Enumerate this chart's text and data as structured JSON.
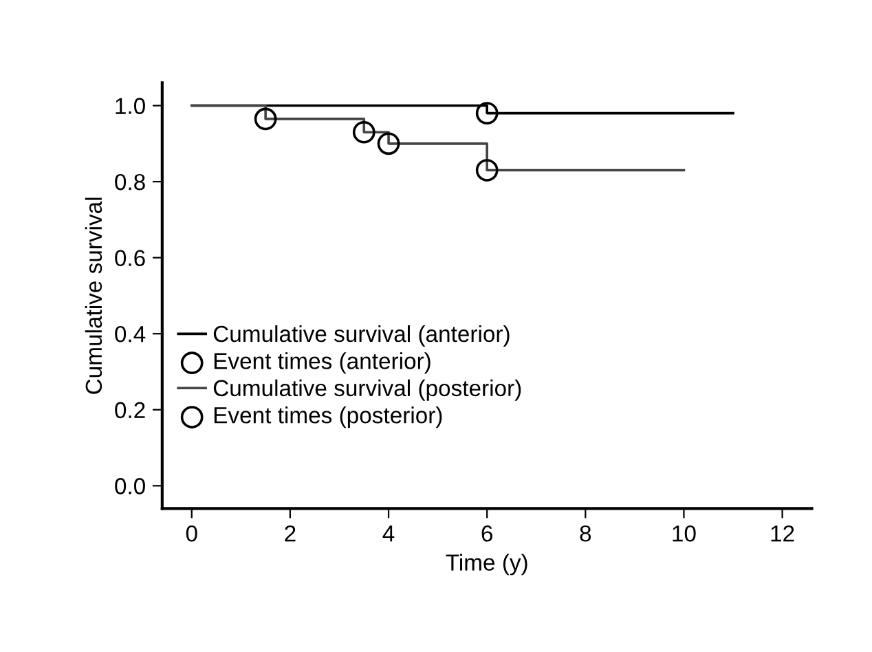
{
  "chart_data": {
    "type": "step",
    "xlabel": "Time (y)",
    "ylabel": "Cumulative survival",
    "xlim": [
      -0.6,
      12.6
    ],
    "xticks": [
      0,
      2,
      4,
      6,
      8,
      10,
      12
    ],
    "ylim": [
      -0.06,
      1.06
    ],
    "yticks": [
      {
        "value": 0,
        "label": "0.0"
      },
      {
        "value": 0.2,
        "label": "0.2"
      },
      {
        "value": 0.4,
        "label": "0.4"
      },
      {
        "value": 0.6,
        "label": "0.6"
      },
      {
        "value": 0.8,
        "label": "0.8"
      },
      {
        "value": 1,
        "label": "1.0"
      }
    ],
    "grid": false,
    "legend": "left",
    "series": [
      {
        "name": "Cumulative survival (anterior)",
        "color": "#000000",
        "line_style": "solid",
        "marker": "none",
        "x": [
          0,
          6,
          11
        ],
        "values": [
          1.0,
          0.98,
          0.98
        ]
      },
      {
        "name": "Event times (anterior)",
        "type": "scatter",
        "color": "#000000",
        "marker": "circle",
        "x": [
          6
        ],
        "values": [
          0.98
        ]
      },
      {
        "name": "Cumulative survival (posterior)",
        "color": "#444444",
        "line_style": "solid",
        "marker": "none",
        "x": [
          0,
          1.5,
          3.5,
          4,
          6,
          10
        ],
        "values": [
          1.0,
          0.965,
          0.93,
          0.9,
          0.83,
          0.83
        ]
      },
      {
        "name": "Event times (posterior)",
        "type": "scatter",
        "color": "#000000",
        "marker": "circle",
        "x": [
          1.5,
          3.5,
          4,
          6
        ],
        "values": [
          0.965,
          0.93,
          0.9,
          0.83
        ]
      }
    ]
  }
}
